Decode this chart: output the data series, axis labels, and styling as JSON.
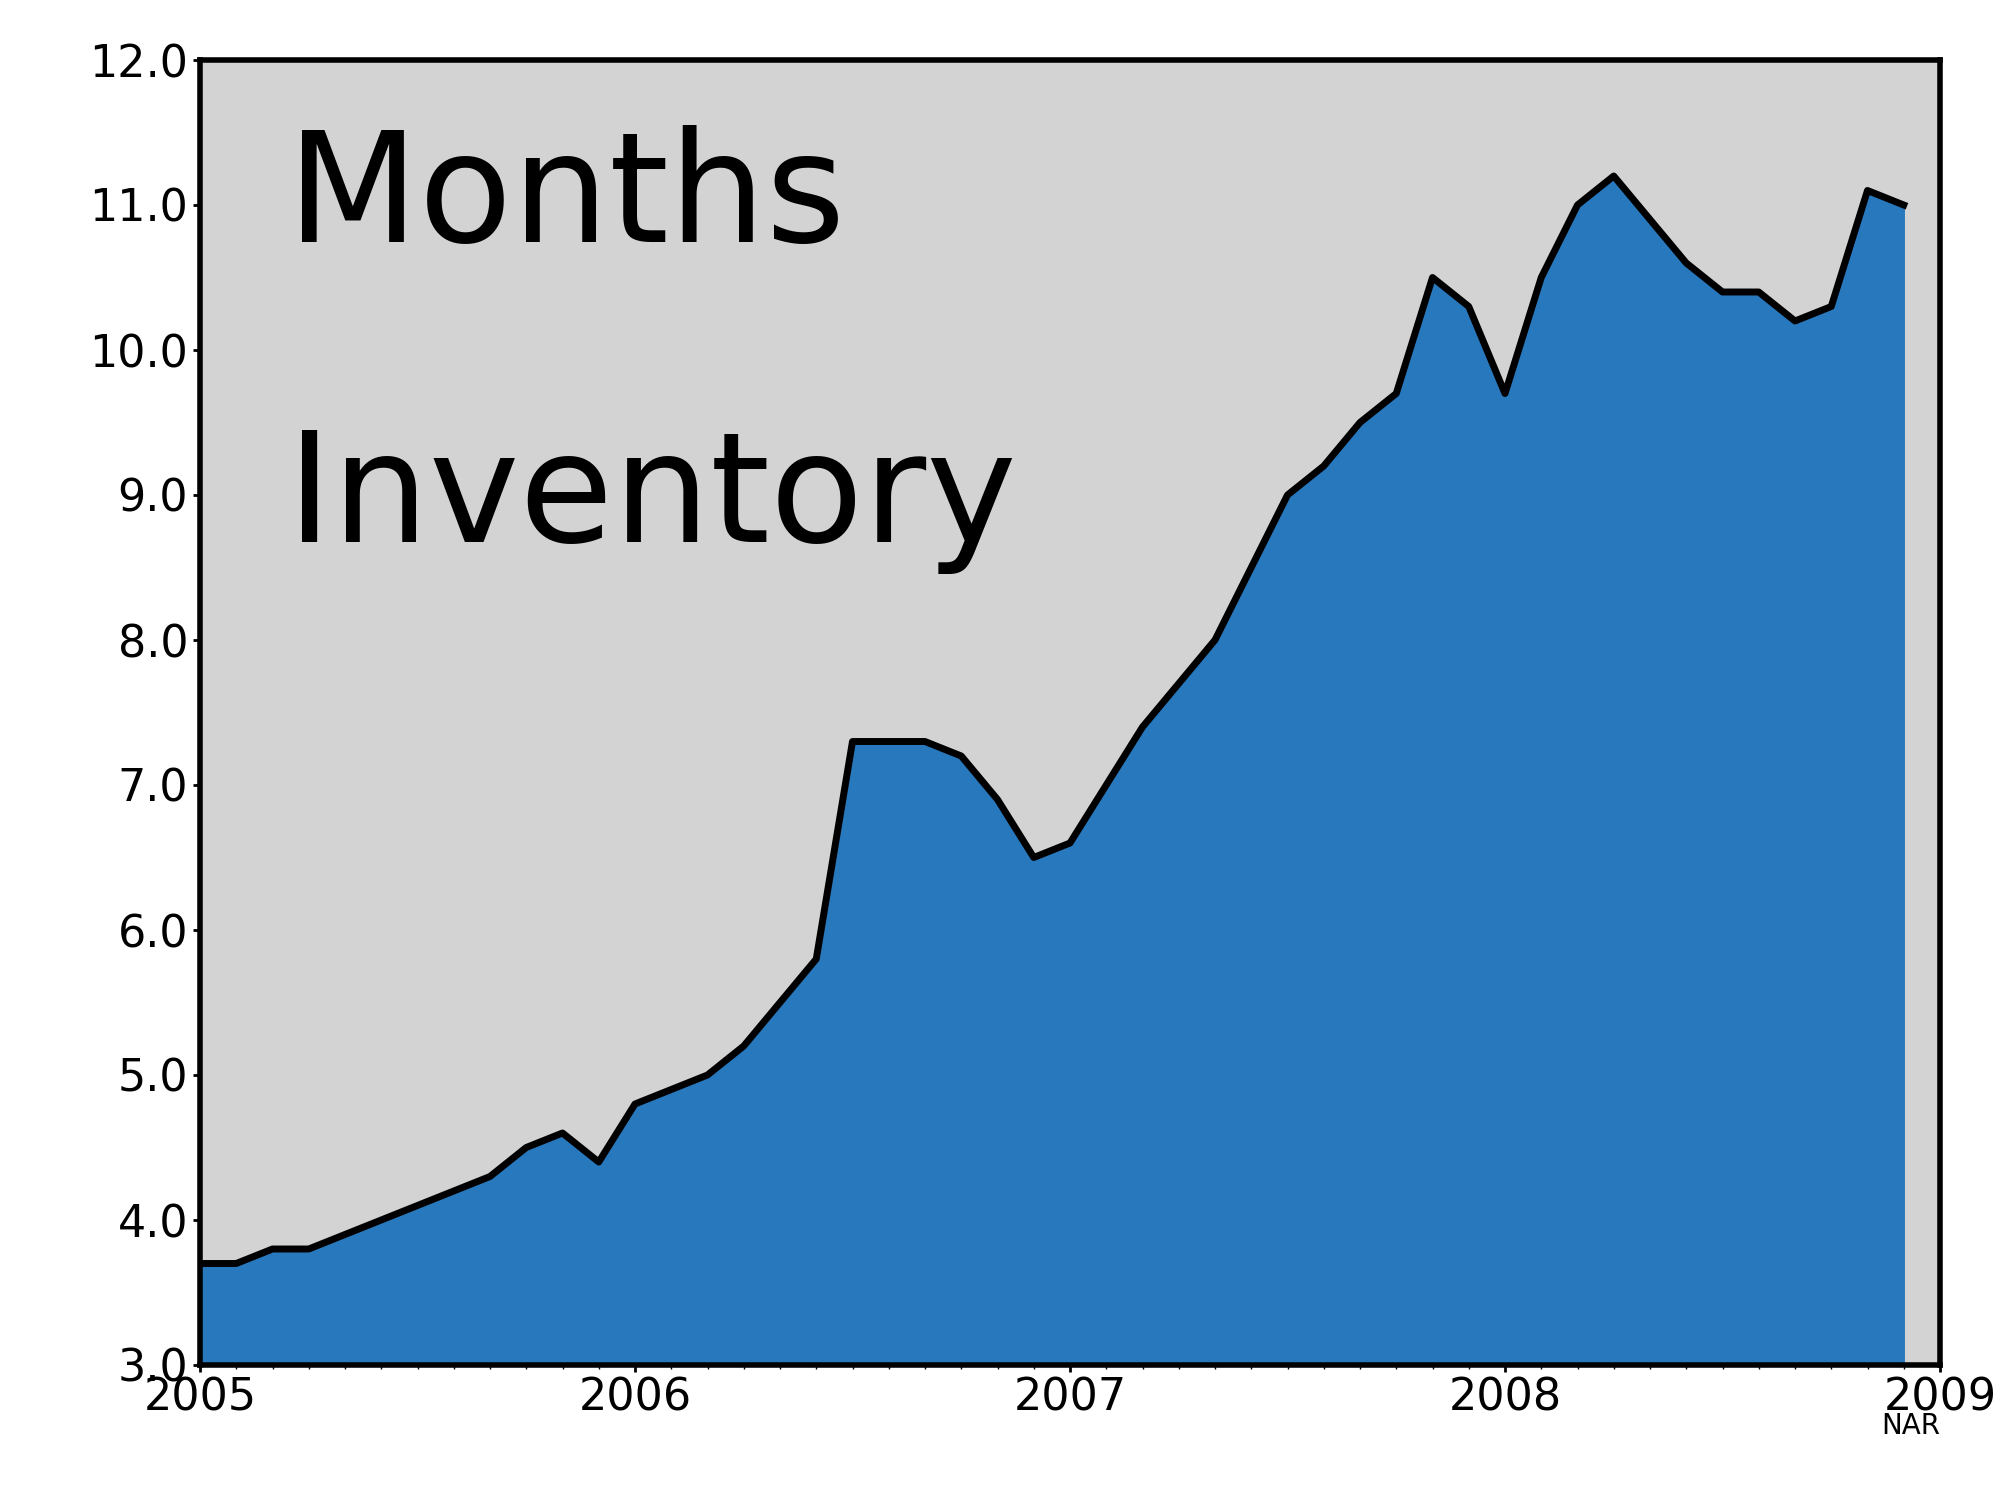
{
  "title_line1": "Months",
  "title_line2": "Inventory",
  "annotation": "NAR",
  "background_color": "#d3d3d3",
  "fill_color": "#2878be",
  "line_color": "#000000",
  "line_width": 5.0,
  "ylim": [
    3.0,
    12.0
  ],
  "yticks": [
    3.0,
    4.0,
    5.0,
    6.0,
    7.0,
    8.0,
    9.0,
    10.0,
    11.0,
    12.0
  ],
  "values": [
    3.7,
    3.7,
    3.8,
    3.8,
    3.9,
    4.0,
    4.1,
    4.2,
    4.3,
    4.5,
    4.6,
    4.4,
    4.8,
    4.9,
    5.0,
    5.2,
    5.5,
    5.8,
    7.3,
    7.3,
    7.3,
    7.2,
    6.9,
    6.5,
    6.6,
    7.0,
    7.4,
    7.7,
    8.0,
    8.5,
    9.0,
    9.2,
    9.5,
    9.7,
    10.5,
    10.3,
    9.7,
    10.5,
    11.0,
    11.2,
    10.9,
    10.6,
    10.4,
    10.4,
    10.2,
    10.3,
    11.1,
    11.0
  ],
  "x_tick_positions": [
    0,
    12,
    24,
    36,
    48
  ],
  "x_tick_labels": [
    "2005",
    "2006",
    "2007",
    "2008",
    "2009"
  ],
  "title_fontsize": 110,
  "tick_fontsize": 32,
  "annotation_fontsize": 20
}
